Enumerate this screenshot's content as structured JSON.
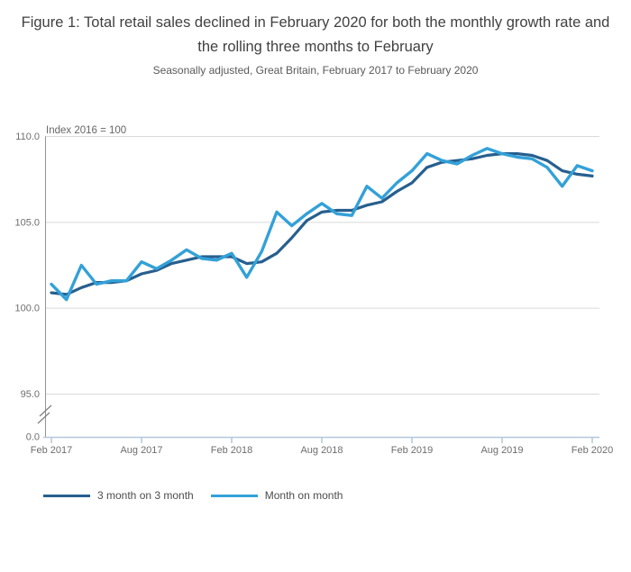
{
  "header": {
    "title": "Figure 1: Total retail sales declined in February 2020 for both the monthly growth rate and the rolling three months to February",
    "subtitle": "Seasonally adjusted, Great Britain, February 2017 to February 2020"
  },
  "chart_data": {
    "type": "line",
    "title": "Figure 1: Total retail sales declined in February 2020 for both the monthly growth rate and the rolling three months to February",
    "subtitle": "Seasonally adjusted, Great Britain, February 2017 to February 2020",
    "y_axis_annotation": "Index 2016 = 100",
    "x": [
      "Feb 2017",
      "Mar 2017",
      "Apr 2017",
      "May 2017",
      "Jun 2017",
      "Jul 2017",
      "Aug 2017",
      "Sep 2017",
      "Oct 2017",
      "Nov 2017",
      "Dec 2017",
      "Jan 2018",
      "Feb 2018",
      "Mar 2018",
      "Apr 2018",
      "May 2018",
      "Jun 2018",
      "Jul 2018",
      "Aug 2018",
      "Sep 2018",
      "Oct 2018",
      "Nov 2018",
      "Dec 2018",
      "Jan 2019",
      "Feb 2019",
      "Mar 2019",
      "Apr 2019",
      "May 2019",
      "Jun 2019",
      "Jul 2019",
      "Aug 2019",
      "Sep 2019",
      "Oct 2019",
      "Nov 2019",
      "Dec 2019",
      "Jan 2020",
      "Feb 2020"
    ],
    "series": [
      {
        "name": "3 month on 3 month",
        "color": "#275f8e",
        "values": [
          100.9,
          100.8,
          101.2,
          101.5,
          101.5,
          101.6,
          102.0,
          102.2,
          102.6,
          102.8,
          103.0,
          103.0,
          103.0,
          102.6,
          102.7,
          103.2,
          104.1,
          105.1,
          105.6,
          105.7,
          105.7,
          106.0,
          106.2,
          106.8,
          107.3,
          108.2,
          108.5,
          108.6,
          108.7,
          108.9,
          109.0,
          109.0,
          108.9,
          108.6,
          108.0,
          107.8,
          107.7
        ]
      },
      {
        "name": "Month on month",
        "color": "#33a1d8",
        "values": [
          101.4,
          100.5,
          102.5,
          101.4,
          101.6,
          101.6,
          102.7,
          102.3,
          102.8,
          103.4,
          102.9,
          102.8,
          103.2,
          101.8,
          103.3,
          105.6,
          104.8,
          105.5,
          106.1,
          105.5,
          105.4,
          107.1,
          106.4,
          107.3,
          108.0,
          109.0,
          108.6,
          108.4,
          108.9,
          109.3,
          109.0,
          108.8,
          108.7,
          108.2,
          107.1,
          108.3,
          108.0
        ]
      }
    ],
    "y_ticks": [
      {
        "label": "110.0",
        "value": 110
      },
      {
        "label": "105.0",
        "value": 105
      },
      {
        "label": "100.0",
        "value": 100
      },
      {
        "label": "95.0",
        "value": 95
      },
      {
        "label": "0.0",
        "value": 0
      }
    ],
    "x_tick_labels": [
      "Feb 2017",
      "Aug 2017",
      "Feb 2018",
      "Aug 2018",
      "Feb 2019",
      "Aug 2019",
      "Feb 2020"
    ],
    "ylim_display": [
      95,
      110
    ],
    "y_axis_break": true,
    "grid": "horizontal",
    "legend_position": "bottom-left",
    "colors": {
      "gridline": "#dadada",
      "y_axis": "#949494",
      "x_axis": "#b4c7d9",
      "tick_text": "#6e6e6e",
      "annotation_text": "#666666",
      "break_mark": "#7d7d7d"
    }
  }
}
